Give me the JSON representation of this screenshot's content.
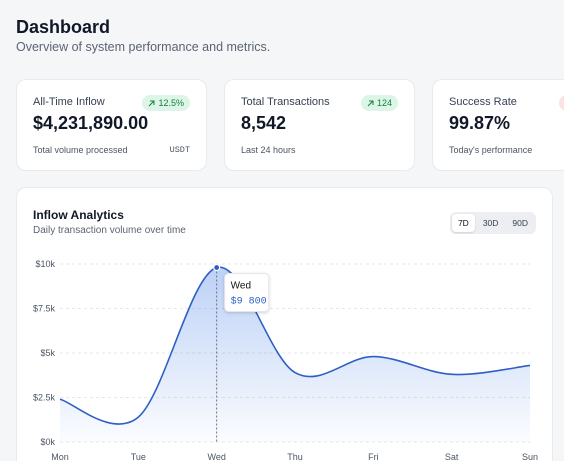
{
  "header": {
    "title": "Dashboard",
    "subtitle": "Overview of system performance and metrics."
  },
  "cards": [
    {
      "label": "All-Time Inflow",
      "value": "$4,231,890.00",
      "badge": "12.5%",
      "footer": "Total volume processed",
      "footer_right": "USDT"
    },
    {
      "label": "Total Transactions",
      "value": "8,542",
      "badge": "124",
      "footer": "Last 24 hours"
    },
    {
      "label": "Success Rate",
      "value": "99.87%",
      "footer": "Today's performance"
    }
  ],
  "ranges": [
    "7D",
    "30D",
    "90D"
  ],
  "active_range": "7D",
  "chart_data": {
    "type": "area",
    "title": "Inflow Analytics",
    "subtitle": "Daily transaction volume over time",
    "categories": [
      "Mon",
      "Tue",
      "Wed",
      "Thu",
      "Fri",
      "Sat",
      "Sun"
    ],
    "values": [
      2400,
      1400,
      9800,
      3900,
      4800,
      3800,
      4300
    ],
    "color": "#2f5fc4",
    "ylim": [
      0,
      10000
    ],
    "yticks": [
      {
        "value": 0,
        "label": "$0k"
      },
      {
        "value": 2500,
        "label": "$2.5k"
      },
      {
        "value": 5000,
        "label": "$5k"
      },
      {
        "value": 7500,
        "label": "$7.5k"
      },
      {
        "value": 10000,
        "label": "$10k"
      }
    ],
    "grid": true,
    "tooltip": {
      "title": "Wed",
      "value": "$9 800"
    }
  }
}
